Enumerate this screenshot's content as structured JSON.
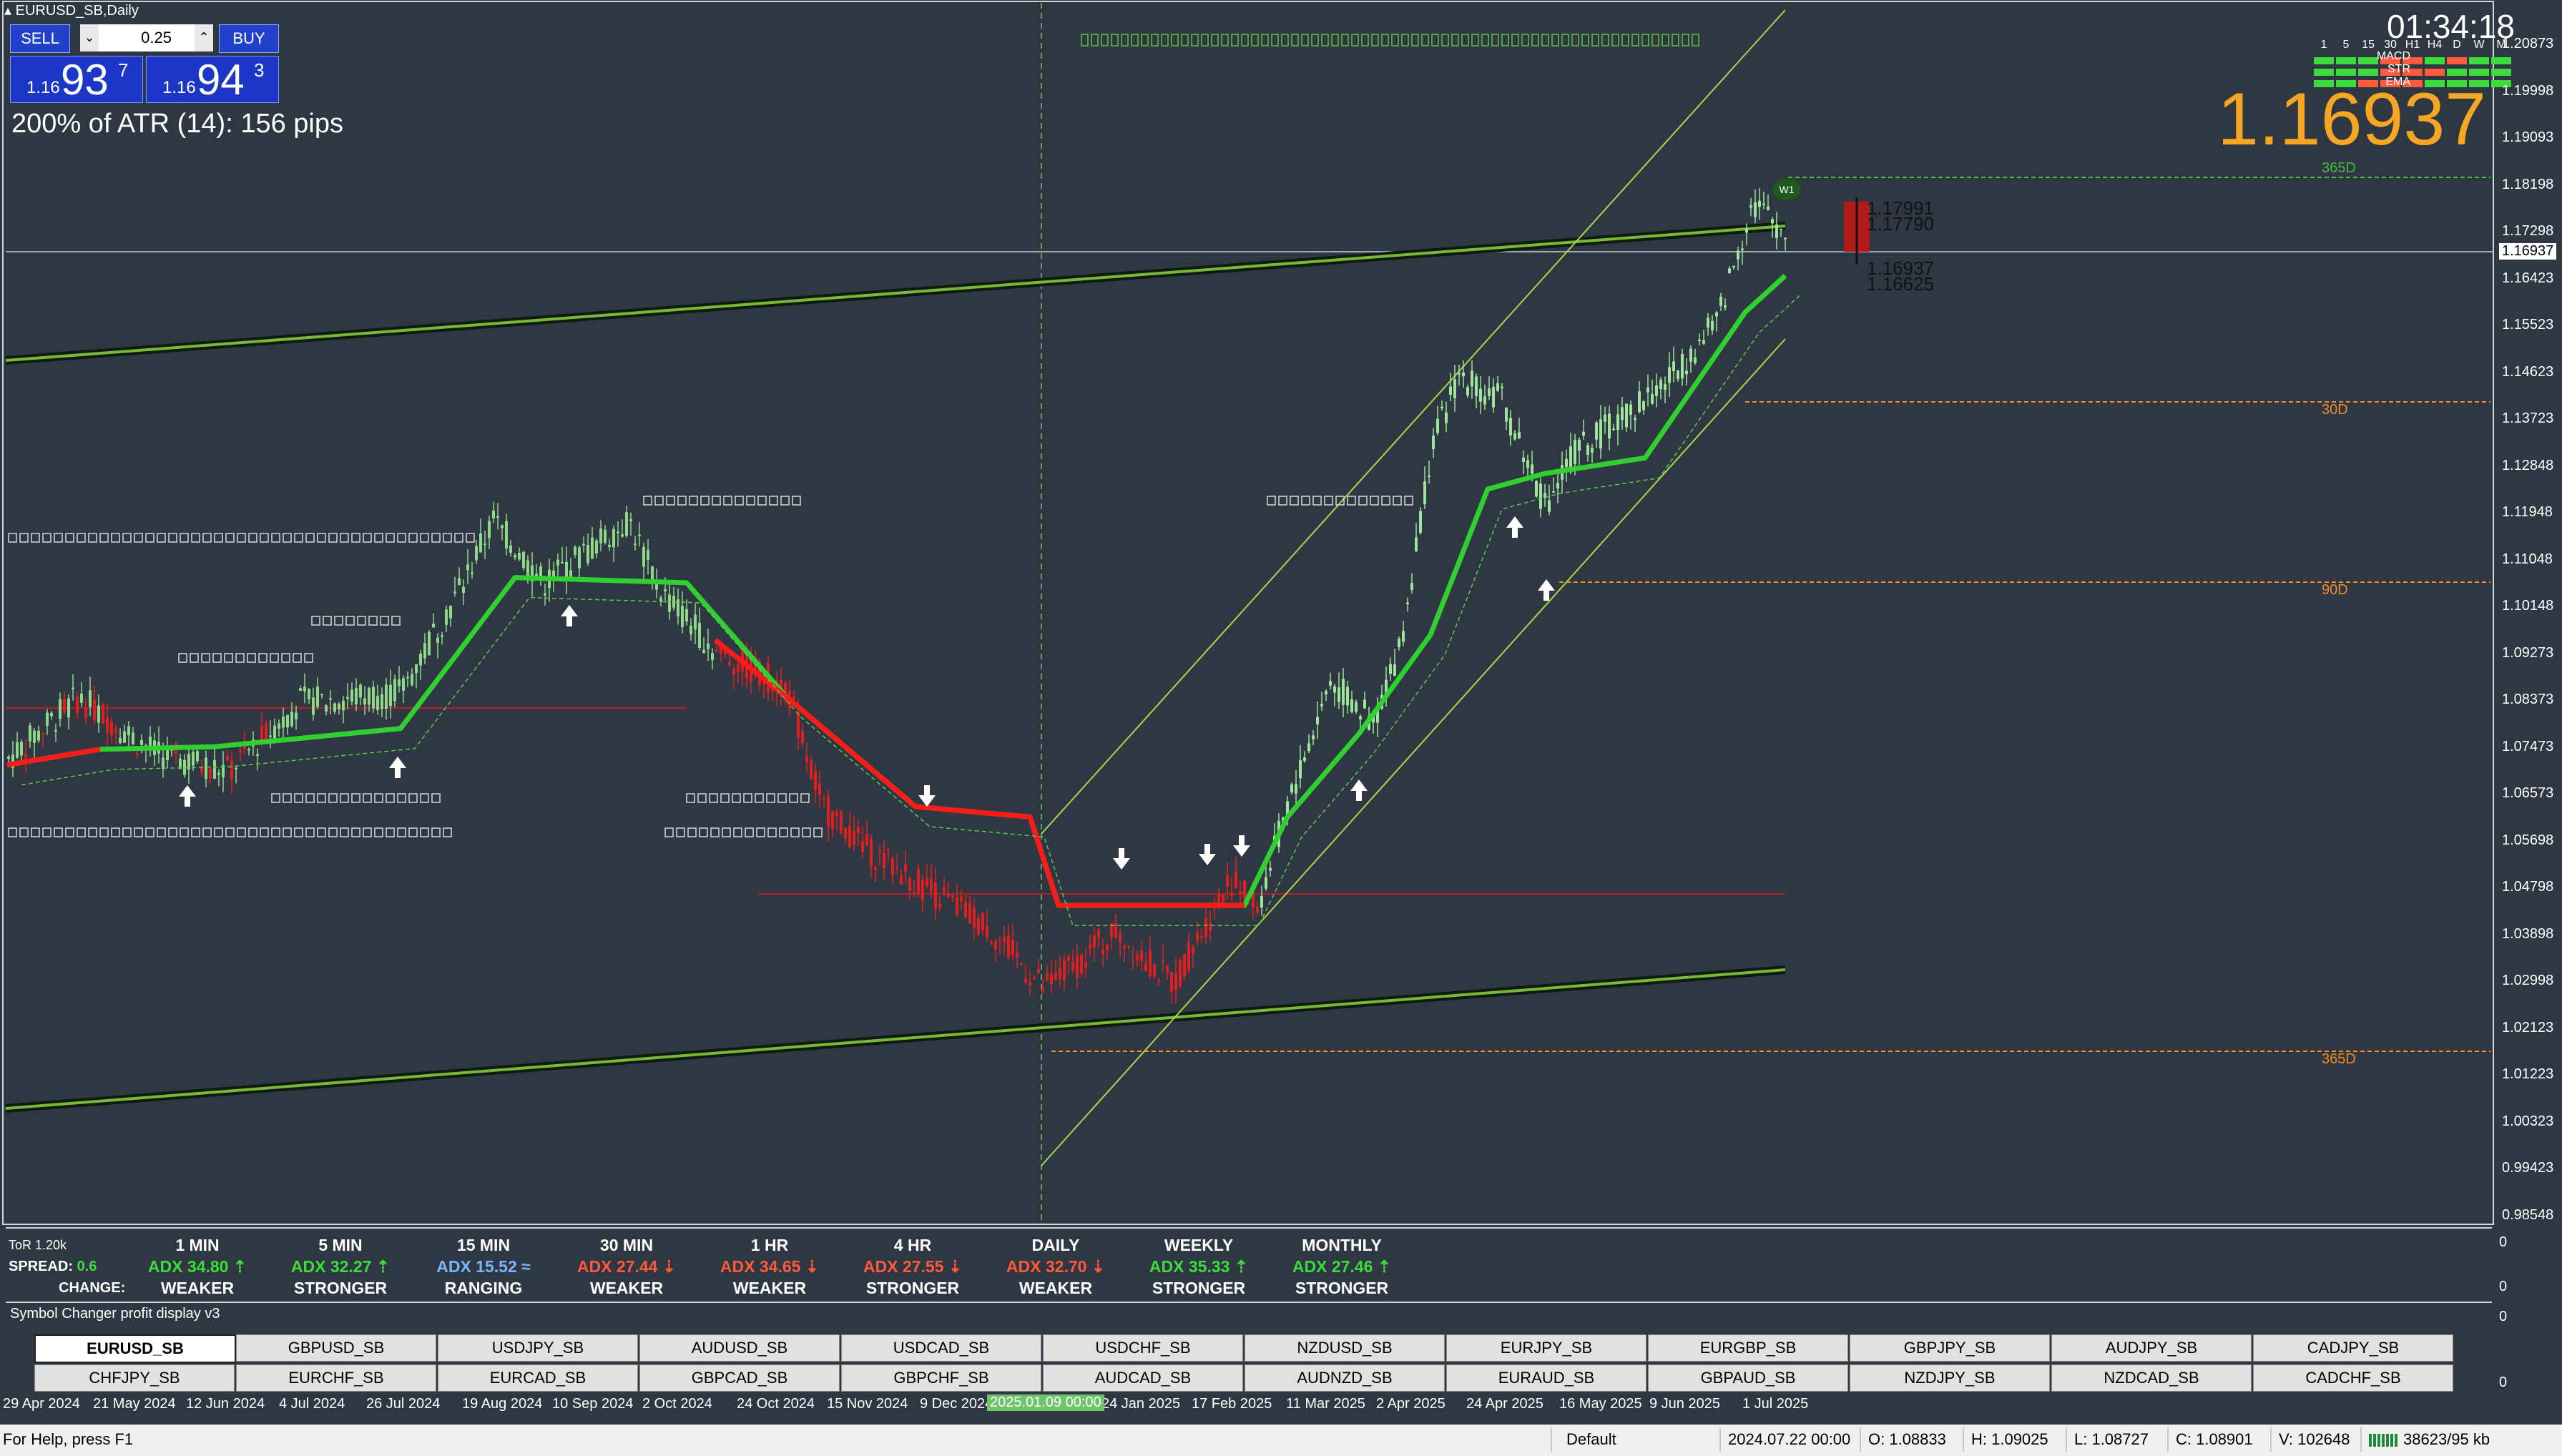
{
  "window": {
    "title": "EURUSD_SB,Daily"
  },
  "trade_panel": {
    "sell_label": "SELL",
    "buy_label": "BUY",
    "lot_value": "0.25",
    "spin_down": "⌄",
    "spin_up": "⌃",
    "bid": {
      "prefix": "1.16",
      "main": "93",
      "pip": "7"
    },
    "ask": {
      "prefix": "1.16",
      "main": "94",
      "pip": "3"
    }
  },
  "atr_text": "200% of ATR (14): 156 pips",
  "clock": "01:34:18",
  "current_price": "1.16937",
  "mtf_indicator": {
    "timeframes": [
      "1",
      "5",
      "15",
      "30",
      "H1",
      "H4",
      "D",
      "W",
      "M"
    ],
    "rows": [
      "MACD",
      "STR",
      "EMA"
    ]
  },
  "price_axis": {
    "labels": [
      "1.20873",
      "1.19998",
      "1.19093",
      "1.18198",
      "1.17298",
      "1.16423",
      "1.15523",
      "1.14623",
      "1.13723",
      "1.12848",
      "1.11948",
      "1.11048",
      "1.10148",
      "1.09273",
      "1.08373",
      "1.07473",
      "1.06573",
      "1.05698",
      "1.04798",
      "1.03898",
      "1.02998",
      "1.02123",
      "1.01223",
      "1.00323",
      "0.99423",
      "0.98548"
    ],
    "current_box": "1.16937"
  },
  "levels": {
    "l365d_top": "365D",
    "l30d": "30D",
    "l90d": "90D",
    "l365d_bottom": "365D"
  },
  "annotations": {
    "w1": "W1",
    "p1": "1.17991",
    "p2": "1.17790",
    "p3": "1.16937",
    "p4": "1.16625"
  },
  "adx_panel": {
    "tor": "ToR 1.20k",
    "spread_label": "SPREAD:",
    "spread_value": "0.6",
    "change_label": "CHANGE:",
    "right_axis_labels": [
      "0",
      "0"
    ],
    "columns": [
      {
        "tf": "1 MIN",
        "adx": "ADX 34.80 ⇡",
        "dir": "up",
        "state": "WEAKER"
      },
      {
        "tf": "5 MIN",
        "adx": "ADX 32.27 ⇡",
        "dir": "up",
        "state": "STRONGER"
      },
      {
        "tf": "15 MIN",
        "adx": "ADX 15.52 ≈",
        "dir": "rng",
        "state": "RANGING"
      },
      {
        "tf": "30 MIN",
        "adx": "ADX 27.44 ⇣",
        "dir": "dn",
        "state": "WEAKER"
      },
      {
        "tf": "1 HR",
        "adx": "ADX 34.65 ⇣",
        "dir": "dn",
        "state": "WEAKER"
      },
      {
        "tf": "4 HR",
        "adx": "ADX 27.55 ⇣",
        "dir": "dn",
        "state": "STRONGER"
      },
      {
        "tf": "DAILY",
        "adx": "ADX 32.70 ⇣",
        "dir": "dn",
        "state": "WEAKER"
      },
      {
        "tf": "WEEKLY",
        "adx": "ADX 35.33 ⇡",
        "dir": "up",
        "state": "STRONGER"
      },
      {
        "tf": "MONTHLY",
        "adx": "ADX 27.46 ⇡",
        "dir": "up",
        "state": "STRONGER"
      }
    ]
  },
  "symbol_changer": {
    "title": "Symbol Changer profit display v3",
    "row1": [
      "EURUSD_SB",
      "GBPUSD_SB",
      "USDJPY_SB",
      "AUDUSD_SB",
      "USDCAD_SB",
      "USDCHF_SB",
      "NZDUSD_SB",
      "EURJPY_SB",
      "EURGBP_SB",
      "GBPJPY_SB",
      "AUDJPY_SB",
      "CADJPY_SB"
    ],
    "row2": [
      "CHFJPY_SB",
      "EURCHF_SB",
      "EURCAD_SB",
      "GBPCAD_SB",
      "GBPCHF_SB",
      "AUDCAD_SB",
      "AUDNZD_SB",
      "EURAUD_SB",
      "GBPAUD_SB",
      "NZDJPY_SB",
      "NZDCAD_SB",
      "CADCHF_SB"
    ],
    "active": "EURUSD_SB",
    "right_axis_labels": [
      "0",
      "0"
    ]
  },
  "date_axis": {
    "labels": [
      "29 Apr 2024",
      "21 May 2024",
      "12 Jun 2024",
      "4 Jul 2024",
      "26 Jul 2024",
      "19 Aug 2024",
      "10 Sep 2024",
      "2 Oct 2024",
      "24 Oct 2024",
      "15 Nov 2024",
      "9 Dec 2024",
      "24 Jan 2025",
      "17 Feb 2025",
      "11 Mar 2025",
      "2 Apr 2025",
      "24 Apr 2025",
      "16 May 2025",
      "9 Jun 2025",
      "1 Jul 2025"
    ],
    "highlight": "2025.01.09 00:00"
  },
  "status_bar": {
    "help": "For Help, press F1",
    "profile": "Default",
    "datetime": "2024.07.22 00:00",
    "open": "O: 1.08833",
    "high": "H: 1.09025",
    "low": "L: 1.08727",
    "close": "C: 1.08901",
    "volume": "V: 102648",
    "traffic": "38623/95 kb"
  },
  "colors": {
    "background": "#2f3842",
    "bull": "#9fe39c",
    "bear": "#e02020",
    "ma_green": "#2fd02f",
    "ma_red": "#ff1a1a",
    "level_orange": "#f28c28",
    "level_green": "#3fbf3f",
    "channel": "#a8d84a",
    "price_orange": "#f5a623"
  }
}
